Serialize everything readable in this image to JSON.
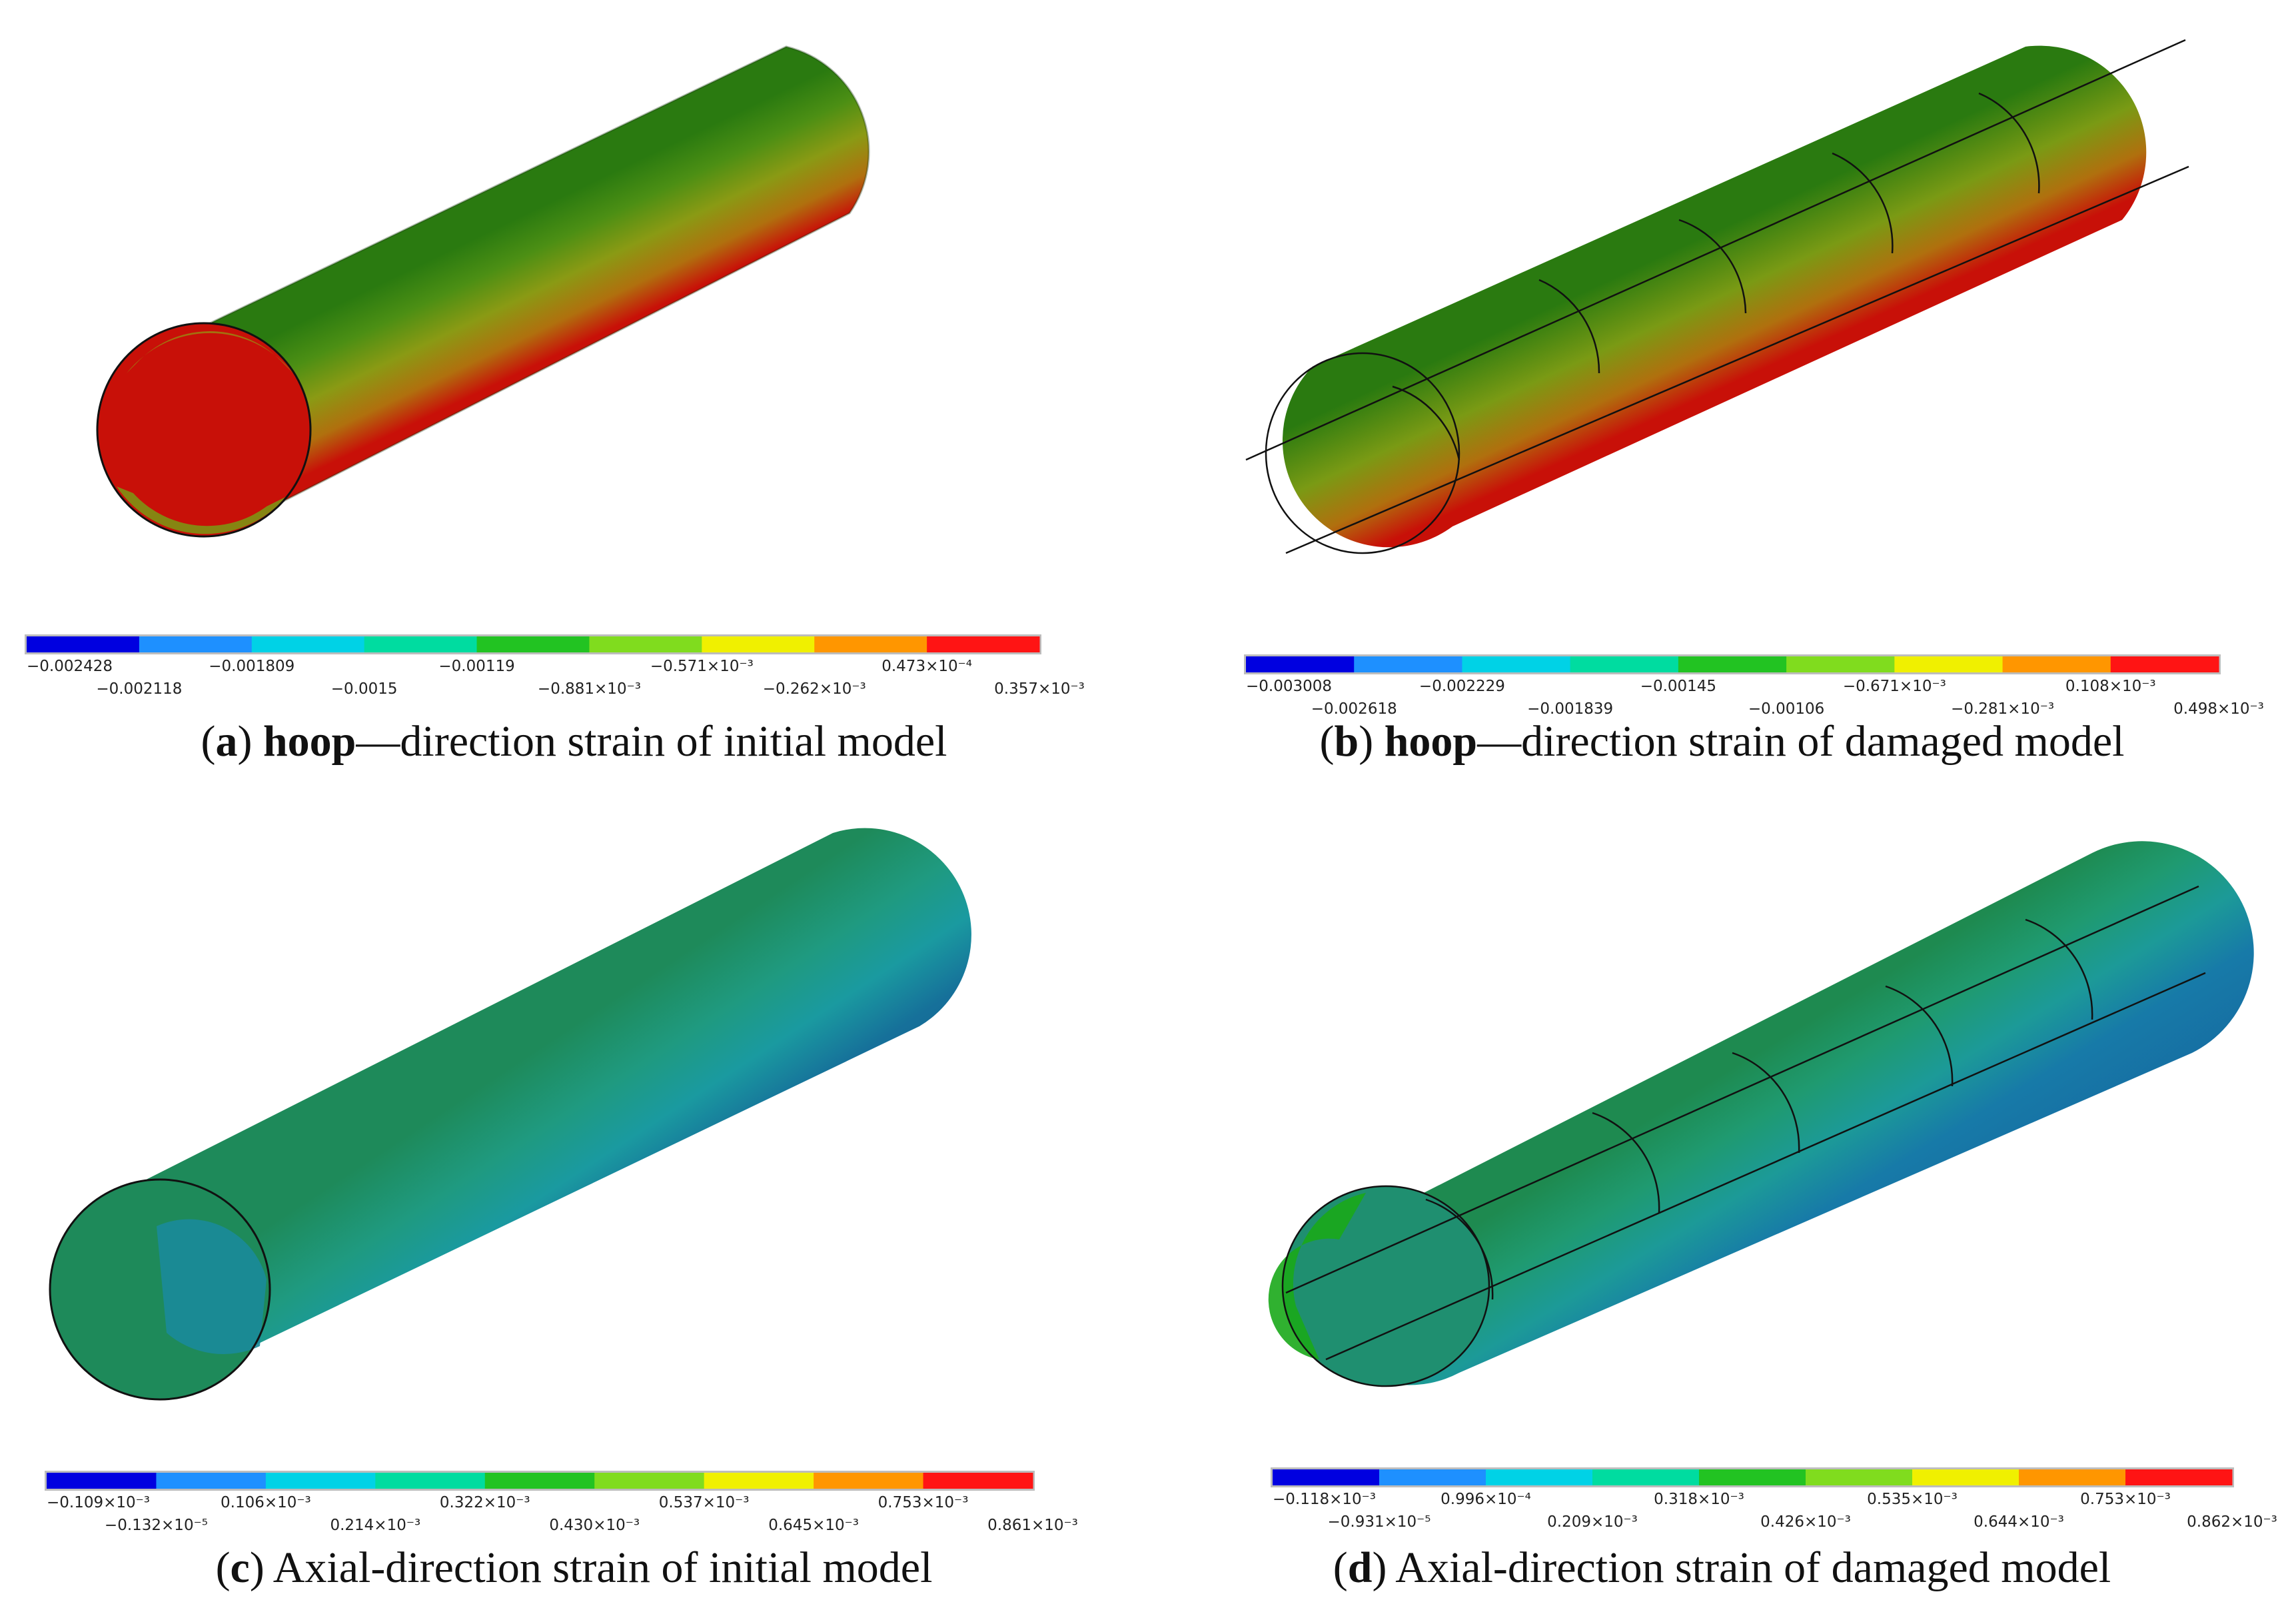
{
  "panels": [
    {
      "id": "a",
      "caption": {
        "letter": "a",
        "bold": "hoop",
        "rest": "—direction strain of initial model"
      },
      "legend": {
        "colors": [
          "#0000e0",
          "#1e90ff",
          "#00d2e6",
          "#00dca0",
          "#22c322",
          "#80dc1e",
          "#f0f000",
          "#ff9600",
          "#ff1414"
        ],
        "labels_top": [
          "−0.002428",
          "−0.001809",
          "−0.00119",
          "−0.571×10⁻³",
          "0.473×10⁻⁴"
        ],
        "labels_bottom": [
          "−0.002118",
          "−0.0015",
          "−0.881×10⁻³",
          "−0.262×10⁻³",
          "0.357×10⁻³"
        ]
      }
    },
    {
      "id": "b",
      "caption": {
        "letter": "b",
        "bold": "hoop",
        "rest": "—direction strain of damaged model"
      },
      "legend": {
        "colors": [
          "#0000e0",
          "#1e90ff",
          "#00d2e6",
          "#00dca0",
          "#22c322",
          "#80dc1e",
          "#f0f000",
          "#ff9600",
          "#ff1414"
        ],
        "labels_top": [
          "−0.003008",
          "−0.002229",
          "−0.00145",
          "−0.671×10⁻³",
          "0.108×10⁻³"
        ],
        "labels_bottom": [
          "−0.002618",
          "−0.001839",
          "−0.00106",
          "−0.281×10⁻³",
          "0.498×10⁻³"
        ]
      }
    },
    {
      "id": "c",
      "caption": {
        "letter": "c",
        "bold": "",
        "rest": "Axial-direction strain of initial model"
      },
      "legend": {
        "colors": [
          "#0000e0",
          "#1e90ff",
          "#00d2e6",
          "#00dca0",
          "#22c322",
          "#80dc1e",
          "#f0f000",
          "#ff9600",
          "#ff1414"
        ],
        "labels_top": [
          "−0.109×10⁻³",
          "0.106×10⁻³",
          "0.322×10⁻³",
          "0.537×10⁻³",
          "0.753×10⁻³"
        ],
        "labels_bottom": [
          "−0.132×10⁻⁵",
          "0.214×10⁻³",
          "0.430×10⁻³",
          "0.645×10⁻³",
          "0.861×10⁻³"
        ]
      }
    },
    {
      "id": "d",
      "caption": {
        "letter": "d",
        "bold": "",
        "rest": "Axial-direction strain of damaged model"
      },
      "legend": {
        "colors": [
          "#0000e0",
          "#1e90ff",
          "#00d2e6",
          "#00dca0",
          "#22c322",
          "#80dc1e",
          "#f0f000",
          "#ff9600",
          "#ff1414"
        ],
        "labels_top": [
          "−0.118×10⁻³",
          "0.996×10⁻⁴",
          "0.318×10⁻³",
          "0.535×10⁻³",
          "0.753×10⁻³"
        ],
        "labels_bottom": [
          "−0.931×10⁻⁵",
          "0.209×10⁻³",
          "0.426×10⁻³",
          "0.644×10⁻³",
          "0.862×10⁻³"
        ]
      }
    }
  ]
}
